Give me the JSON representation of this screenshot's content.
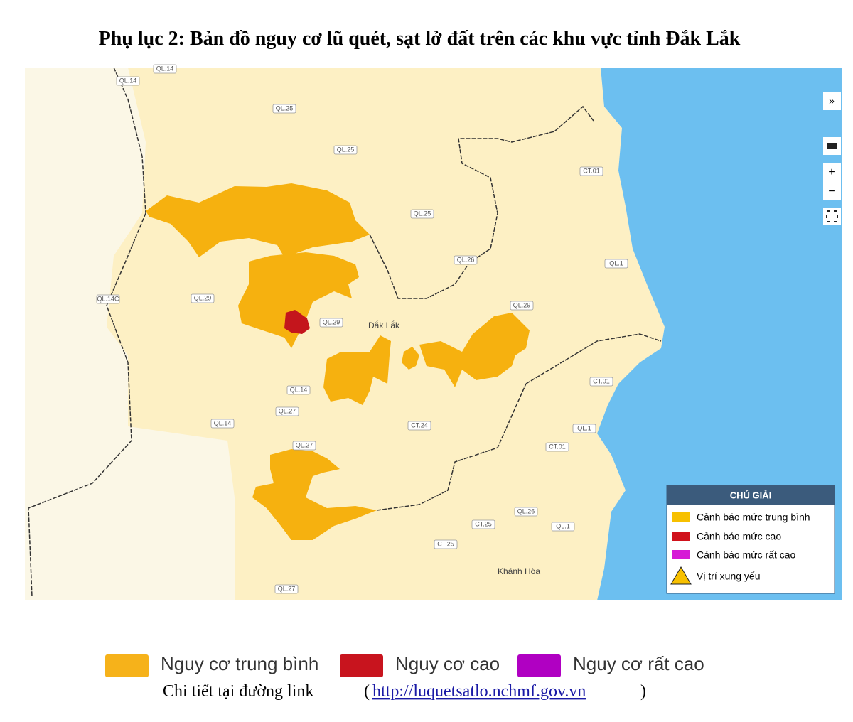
{
  "title": "Phụ lục 2: Bản đồ nguy cơ lũ quét, sạt lở đất trên các khu vực tỉnh Đắk Lắk",
  "map": {
    "places": [
      "Đắk Lắk",
      "Khánh Hòa"
    ],
    "roads": [
      "QL.14",
      "QL.14",
      "QL.25",
      "QL.25",
      "QL.25",
      "QL.26",
      "QL.14C",
      "QL.29",
      "QL.29",
      "QL.29",
      "QL.1",
      "CT.01",
      "QL.14",
      "QL.27",
      "QL.14",
      "CT.24",
      "CT.01",
      "QL.1",
      "CT.01",
      "QL.27",
      "QL.26",
      "QL.1",
      "CT.25",
      "CT.25",
      "QL.27"
    ],
    "controls": [
      "»",
      "+",
      "−"
    ]
  },
  "legend_box": {
    "title": "CHÚ GIẢI",
    "items": [
      "Cảnh báo mức trung bình",
      "Cảnh báo mức cao",
      "Cảnh báo mức rất cao",
      "Vị trí xung yếu"
    ]
  },
  "legend": {
    "items": [
      "Nguy cơ trung bình",
      "Nguy cơ cao",
      "Nguy cơ rất cao"
    ]
  },
  "footer": {
    "text": "Chi tiết tại đường link",
    "open": "(",
    "link": "http://luquetsatlo.nchmf.gov.vn",
    "close": ")"
  }
}
